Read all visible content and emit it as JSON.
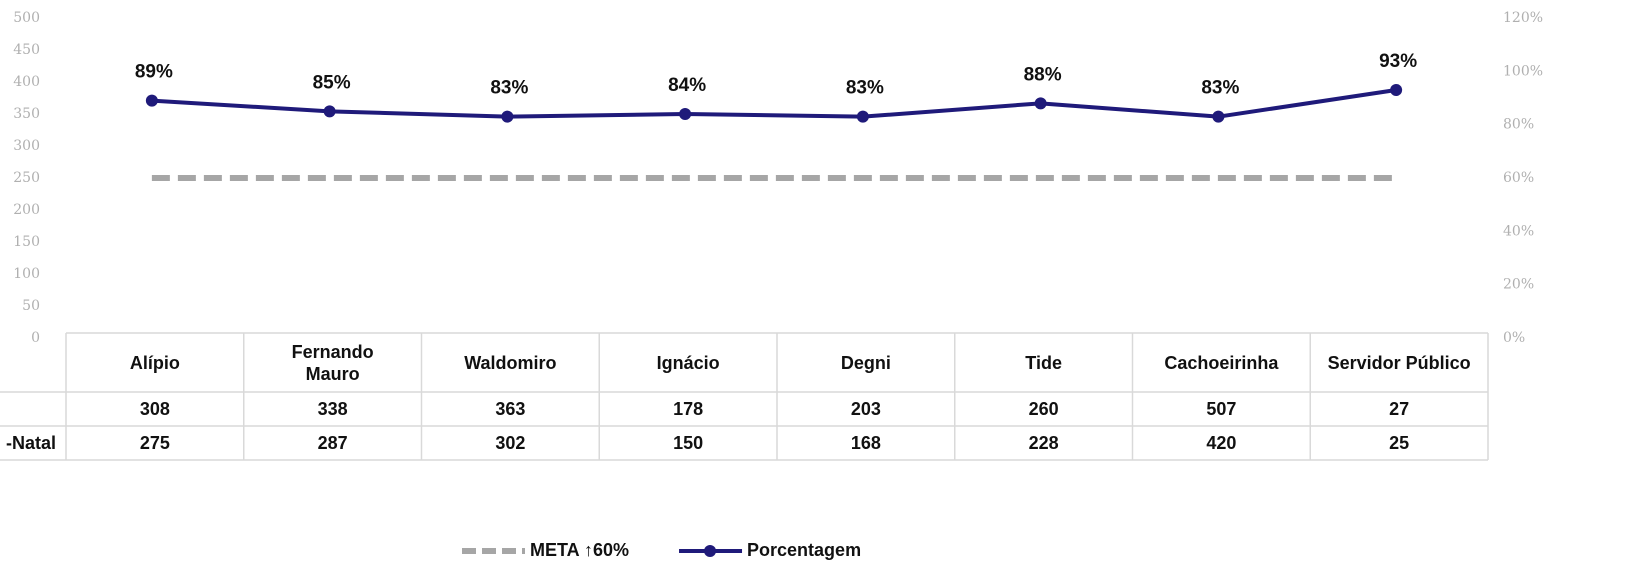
{
  "chart_data": {
    "type": "line",
    "categories": [
      "Alípio",
      "Fernando\nMauro",
      "Waldomiro",
      "Ignácio",
      "Degni",
      "Tide",
      "Cachoeirinha",
      "Servidor Público"
    ],
    "ylim": [
      0,
      500
    ],
    "yticks": [
      0,
      50,
      100,
      150,
      200,
      250,
      300,
      350,
      400,
      450,
      500
    ],
    "y2lim": [
      0,
      120
    ],
    "y2ticks": [
      {
        "value": 0,
        "label": "0%"
      },
      {
        "value": 20,
        "label": "20%"
      },
      {
        "value": 40,
        "label": "40%"
      },
      {
        "value": 60,
        "label": "60%"
      },
      {
        "value": 80,
        "label": "80%"
      },
      {
        "value": 100,
        "label": "100%"
      },
      {
        "value": 120,
        "label": "120%"
      }
    ],
    "series": [
      {
        "name": "META ↑60%",
        "color": "#a6a6a6",
        "dashed": true,
        "axis": "y2",
        "values": [
          60,
          60,
          60,
          60,
          60,
          60,
          60,
          60
        ]
      },
      {
        "name": "Porcentagem",
        "color": "#1f1a7a",
        "axis": "y2",
        "values": [
          89,
          85,
          83,
          84,
          83,
          88,
          83,
          93
        ],
        "value_labels": [
          "89%",
          "85%",
          "83%",
          "84%",
          "83%",
          "88%",
          "83%",
          "93%"
        ]
      }
    ],
    "data_table": [
      {
        "values": [
          308,
          338,
          363,
          178,
          203,
          260,
          507,
          27
        ]
      },
      {
        "name": "-Natal",
        "values": [
          275,
          287,
          302,
          150,
          168,
          228,
          420,
          25
        ]
      }
    ],
    "legend": "bottom"
  }
}
